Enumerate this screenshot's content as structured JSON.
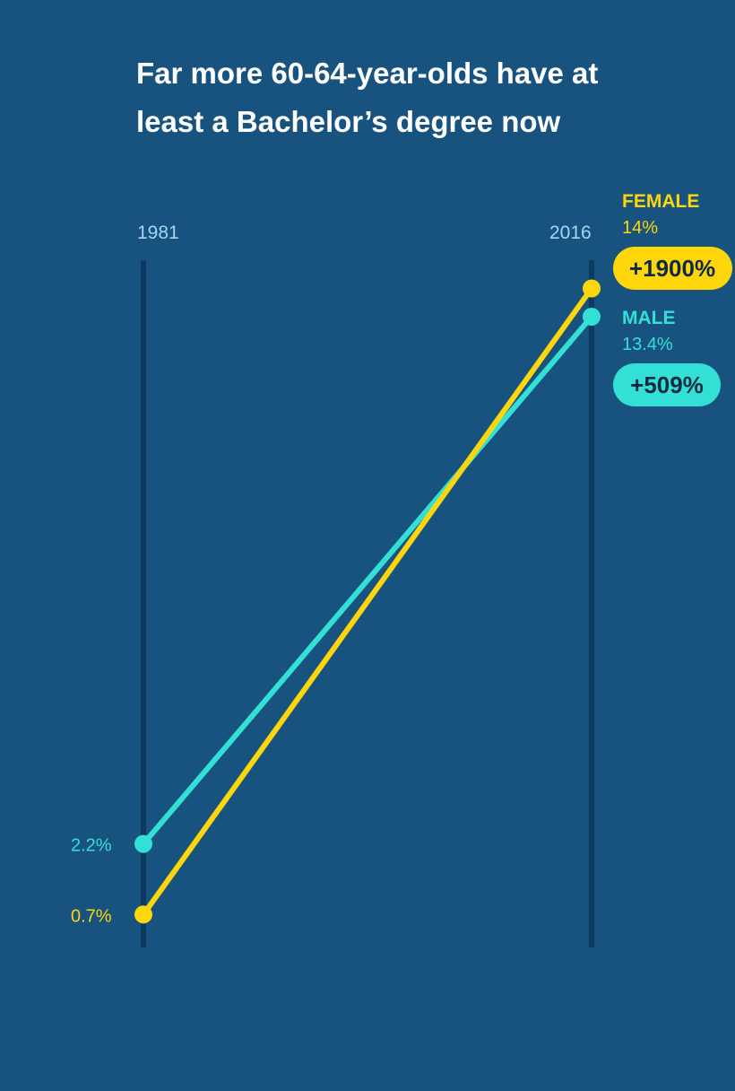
{
  "chart_data": {
    "type": "line",
    "title_lines": [
      "Far more 60-64-year-olds have at",
      "least a Bachelor’s degree now"
    ],
    "x": [
      "1981",
      "2016"
    ],
    "series": [
      {
        "name": "FEMALE",
        "values": [
          0.7,
          14
        ],
        "start_label": "0.7%",
        "end_label": "14%",
        "change_label": "+1900%",
        "color": "#ffd60a"
      },
      {
        "name": "MALE",
        "values": [
          2.2,
          13.4
        ],
        "start_label": "2.2%",
        "end_label": "13.4%",
        "change_label": "+509%",
        "color": "#33e0d6"
      }
    ],
    "ylim": [
      0,
      14.6
    ],
    "grid": false,
    "legend": "right"
  },
  "colors": {
    "background": "#18527f",
    "axis_line": "#0d3a61",
    "title": "#ffffff",
    "year_label": "#a9d4f2",
    "pill_text": "#0f2a44"
  }
}
